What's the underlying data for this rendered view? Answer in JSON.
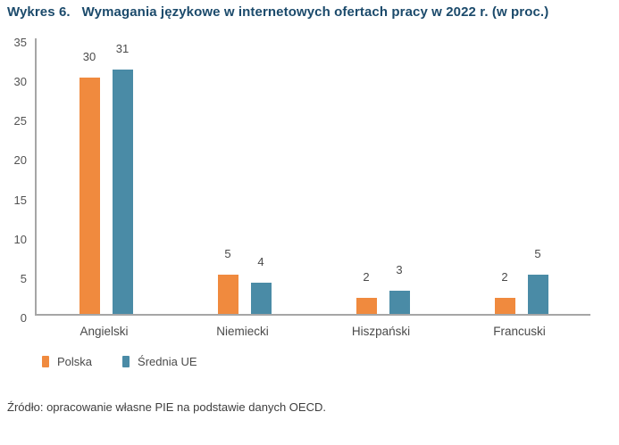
{
  "title": {
    "prefix": "Wykres 6.",
    "text": "Wymagania językowe w internetowych ofertach pracy w 2022 r. (w proc.)"
  },
  "source": "Źródło: opracowanie własne PIE na podstawie danych OECD.",
  "colors": {
    "title": "#1B4A6B",
    "axis": "#A6A6A6",
    "tick_text": "#525252",
    "label_text": "#4A4A4A",
    "polska": "#F08A3E",
    "srednia_ue": "#4A8BA6"
  },
  "chart_data": {
    "type": "bar",
    "title": "Wykres 6. Wymagania językowe w internetowych ofertach pracy w 2022 r. (w proc.)",
    "categories": [
      "Angielski",
      "Niemiecki",
      "Hiszpański",
      "Francuski"
    ],
    "series": [
      {
        "name": "Polska",
        "color": "#F08A3E",
        "values": [
          30,
          5,
          2,
          2
        ]
      },
      {
        "name": "Średnia UE",
        "color": "#4A8BA6",
        "values": [
          31,
          4,
          3,
          5
        ]
      }
    ],
    "ylim": [
      0,
      35
    ],
    "yticks": [
      0,
      5,
      10,
      15,
      20,
      25,
      30,
      35
    ],
    "grid": false,
    "data_labels": true,
    "legend_position": "bottom-left",
    "xlabel": "",
    "ylabel": ""
  }
}
